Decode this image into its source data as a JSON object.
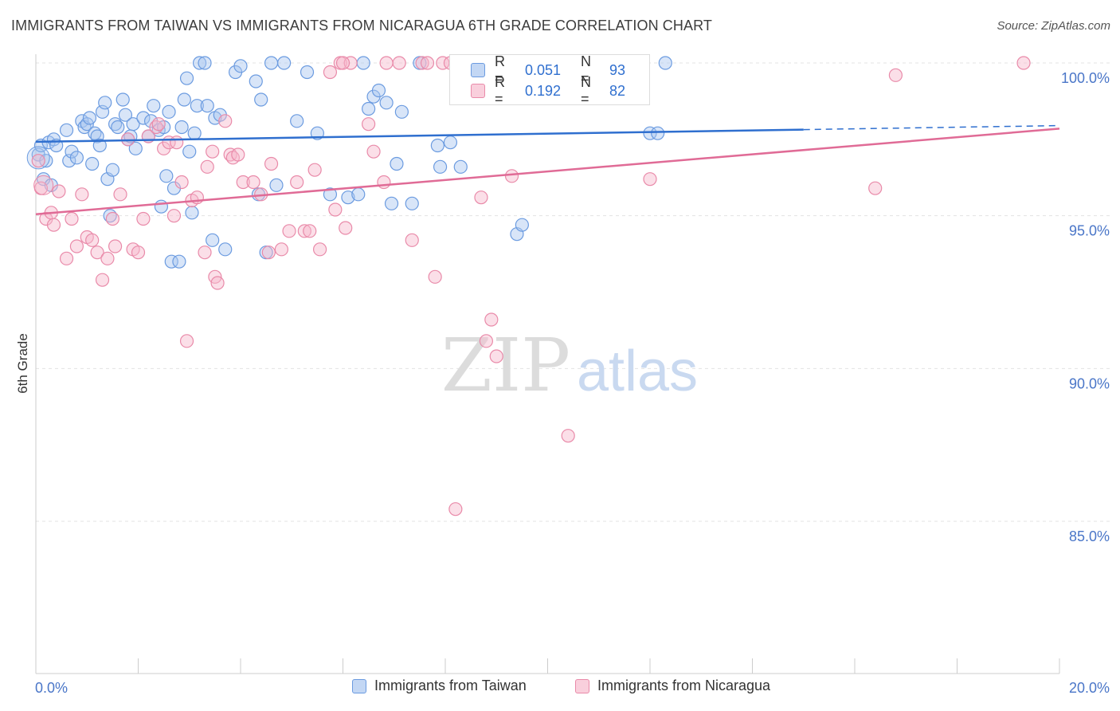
{
  "title": "IMMIGRANTS FROM TAIWAN VS IMMIGRANTS FROM NICARAGUA 6TH GRADE CORRELATION CHART",
  "source": "Source: ZipAtlas.com",
  "watermark": {
    "zip": "ZIP",
    "atlas": "atlas"
  },
  "colors": {
    "taiwan_fill": "#a9c6ef",
    "taiwan_stroke": "#6b9be0",
    "taiwan_line": "#2f6fcf",
    "nicaragua_fill": "#f6b8cb",
    "nicaragua_stroke": "#e98aa9",
    "nicaragua_line": "#e06b96",
    "axis_text": "#4a76c8",
    "grid": "#e3e3e3"
  },
  "stats": [
    {
      "r_label": "R =",
      "r_value": "0.051",
      "n_label": "N =",
      "n_value": "93"
    },
    {
      "r_label": "R =",
      "r_value": "0.192",
      "n_label": "N =",
      "n_value": "82"
    }
  ],
  "legend": [
    {
      "label": "Immigrants from Taiwan"
    },
    {
      "label": "Immigrants from Nicaragua"
    }
  ],
  "chart_data": {
    "type": "scatter",
    "title": "IMMIGRANTS FROM TAIWAN VS IMMIGRANTS FROM NICARAGUA 6TH GRADE CORRELATION CHART",
    "xlabel": "",
    "ylabel": "6th Grade",
    "xlim": [
      0,
      20
    ],
    "ylim": [
      80.5,
      100.8
    ],
    "x_tick_labels": [
      "0.0%",
      "20.0%"
    ],
    "y_ticks": [
      85,
      90,
      95,
      100
    ],
    "y_tick_labels": [
      "85.0%",
      "90.0%",
      "95.0%",
      "100.0%"
    ],
    "grid": true,
    "legend_position": "bottom",
    "series": [
      {
        "name": "Immigrants from Taiwan",
        "trend": {
          "x": [
            0,
            15
          ],
          "y": [
            97.42,
            97.82
          ],
          "dashed_to": [
            20,
            97.95
          ]
        },
        "points": [
          [
            0.05,
            97.0
          ],
          [
            0.1,
            97.3
          ],
          [
            0.15,
            96.2
          ],
          [
            0.2,
            96.8
          ],
          [
            0.25,
            97.4
          ],
          [
            0.3,
            96.0
          ],
          [
            0.35,
            97.5
          ],
          [
            0.4,
            97.3
          ],
          [
            0.6,
            97.8
          ],
          [
            0.65,
            96.8
          ],
          [
            0.7,
            97.1
          ],
          [
            0.8,
            96.9
          ],
          [
            0.9,
            98.1
          ],
          [
            0.95,
            97.9
          ],
          [
            1.0,
            98.0
          ],
          [
            1.05,
            98.2
          ],
          [
            1.1,
            96.7
          ],
          [
            1.15,
            97.7
          ],
          [
            1.2,
            97.6
          ],
          [
            1.25,
            97.3
          ],
          [
            1.3,
            98.4
          ],
          [
            1.35,
            98.7
          ],
          [
            1.4,
            96.2
          ],
          [
            1.45,
            95.0
          ],
          [
            1.5,
            96.5
          ],
          [
            1.55,
            98.0
          ],
          [
            1.6,
            97.9
          ],
          [
            1.7,
            98.8
          ],
          [
            1.75,
            98.3
          ],
          [
            1.8,
            97.5
          ],
          [
            1.85,
            97.6
          ],
          [
            1.9,
            98.0
          ],
          [
            1.95,
            97.2
          ],
          [
            2.1,
            98.2
          ],
          [
            2.2,
            97.6
          ],
          [
            2.25,
            98.1
          ],
          [
            2.3,
            98.6
          ],
          [
            2.4,
            97.8
          ],
          [
            2.45,
            95.3
          ],
          [
            2.5,
            97.9
          ],
          [
            2.55,
            96.3
          ],
          [
            2.6,
            98.4
          ],
          [
            2.65,
            93.5
          ],
          [
            2.7,
            95.9
          ],
          [
            2.8,
            93.5
          ],
          [
            2.85,
            97.9
          ],
          [
            2.9,
            98.8
          ],
          [
            2.95,
            99.5
          ],
          [
            3.0,
            97.1
          ],
          [
            3.05,
            95.1
          ],
          [
            3.1,
            97.7
          ],
          [
            3.15,
            98.6
          ],
          [
            3.2,
            100.0
          ],
          [
            3.3,
            100.0
          ],
          [
            3.35,
            98.6
          ],
          [
            3.45,
            94.2
          ],
          [
            3.5,
            98.2
          ],
          [
            3.6,
            98.3
          ],
          [
            3.7,
            93.9
          ],
          [
            3.9,
            99.7
          ],
          [
            4.0,
            99.9
          ],
          [
            4.3,
            99.4
          ],
          [
            4.4,
            98.8
          ],
          [
            4.35,
            95.7
          ],
          [
            4.5,
            93.8
          ],
          [
            4.6,
            100.0
          ],
          [
            4.7,
            96.0
          ],
          [
            4.85,
            100.0
          ],
          [
            5.1,
            98.1
          ],
          [
            5.3,
            99.7
          ],
          [
            5.5,
            97.7
          ],
          [
            5.75,
            95.7
          ],
          [
            6.1,
            95.6
          ],
          [
            6.3,
            95.7
          ],
          [
            6.4,
            100.0
          ],
          [
            6.5,
            98.5
          ],
          [
            6.6,
            98.9
          ],
          [
            6.7,
            99.1
          ],
          [
            6.85,
            98.7
          ],
          [
            6.95,
            95.4
          ],
          [
            7.05,
            96.7
          ],
          [
            7.15,
            98.4
          ],
          [
            7.35,
            95.4
          ],
          [
            7.5,
            100.0
          ],
          [
            7.85,
            97.3
          ],
          [
            7.9,
            96.6
          ],
          [
            8.1,
            97.4
          ],
          [
            8.3,
            96.6
          ],
          [
            9.4,
            94.4
          ],
          [
            9.5,
            94.7
          ],
          [
            12.3,
            100.0
          ],
          [
            12.0,
            97.7
          ],
          [
            12.15,
            97.7
          ]
        ]
      },
      {
        "name": "Immigrants from Nicaragua",
        "trend": {
          "x": [
            0,
            20
          ],
          "y": [
            95.05,
            97.85
          ]
        },
        "points": [
          [
            0.05,
            96.8
          ],
          [
            0.1,
            95.9
          ],
          [
            0.2,
            94.9
          ],
          [
            0.3,
            95.1
          ],
          [
            0.35,
            94.7
          ],
          [
            0.45,
            95.8
          ],
          [
            0.6,
            93.6
          ],
          [
            0.7,
            94.9
          ],
          [
            0.8,
            94.0
          ],
          [
            0.9,
            95.7
          ],
          [
            1.0,
            94.3
          ],
          [
            1.1,
            94.2
          ],
          [
            1.2,
            93.8
          ],
          [
            1.3,
            92.9
          ],
          [
            1.4,
            93.6
          ],
          [
            1.5,
            94.9
          ],
          [
            1.55,
            94.0
          ],
          [
            1.65,
            95.7
          ],
          [
            1.8,
            97.5
          ],
          [
            1.9,
            93.9
          ],
          [
            2.0,
            93.8
          ],
          [
            2.1,
            94.9
          ],
          [
            2.2,
            97.6
          ],
          [
            2.35,
            97.9
          ],
          [
            2.4,
            98.0
          ],
          [
            2.5,
            97.2
          ],
          [
            2.6,
            97.4
          ],
          [
            2.7,
            95.0
          ],
          [
            2.75,
            97.4
          ],
          [
            2.85,
            96.1
          ],
          [
            2.95,
            90.9
          ],
          [
            3.05,
            95.5
          ],
          [
            3.15,
            95.6
          ],
          [
            3.3,
            93.8
          ],
          [
            3.35,
            96.6
          ],
          [
            3.45,
            97.1
          ],
          [
            3.5,
            93.0
          ],
          [
            3.55,
            92.8
          ],
          [
            3.7,
            98.1
          ],
          [
            3.8,
            97.0
          ],
          [
            3.85,
            96.9
          ],
          [
            3.95,
            97.0
          ],
          [
            4.05,
            96.1
          ],
          [
            4.25,
            96.1
          ],
          [
            4.4,
            95.7
          ],
          [
            4.55,
            93.8
          ],
          [
            4.6,
            96.7
          ],
          [
            4.8,
            93.9
          ],
          [
            4.95,
            94.5
          ],
          [
            5.1,
            96.1
          ],
          [
            5.25,
            94.5
          ],
          [
            5.35,
            94.5
          ],
          [
            5.45,
            96.5
          ],
          [
            5.55,
            93.9
          ],
          [
            5.75,
            99.7
          ],
          [
            5.85,
            95.2
          ],
          [
            5.95,
            100.0
          ],
          [
            6.05,
            94.6
          ],
          [
            6.15,
            100.0
          ],
          [
            6.5,
            98.0
          ],
          [
            6.6,
            97.1
          ],
          [
            6.8,
            96.1
          ],
          [
            6.85,
            100.0
          ],
          [
            7.1,
            100.0
          ],
          [
            7.35,
            94.2
          ],
          [
            7.55,
            100.0
          ],
          [
            7.65,
            100.0
          ],
          [
            7.8,
            93.0
          ],
          [
            7.95,
            100.0
          ],
          [
            8.1,
            100.0
          ],
          [
            8.2,
            85.4
          ],
          [
            8.7,
            95.6
          ],
          [
            8.8,
            90.9
          ],
          [
            8.9,
            91.6
          ],
          [
            9.3,
            96.3
          ],
          [
            9.0,
            90.4
          ],
          [
            10.4,
            87.8
          ],
          [
            12.0,
            96.2
          ],
          [
            16.4,
            95.9
          ],
          [
            16.8,
            99.6
          ],
          [
            19.3,
            100.0
          ],
          [
            6.0,
            100.0
          ]
        ]
      }
    ]
  }
}
